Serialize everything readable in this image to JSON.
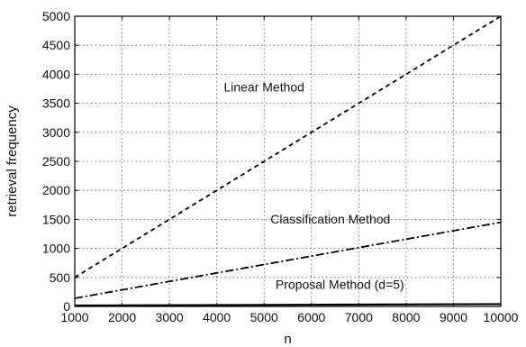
{
  "chart_data": {
    "type": "line",
    "xlabel": "n",
    "ylabel": "retrieval frequency",
    "xlim": [
      1000,
      10000
    ],
    "ylim": [
      0,
      5000
    ],
    "xticks": [
      1000,
      2000,
      3000,
      4000,
      5000,
      6000,
      7000,
      8000,
      9000,
      10000
    ],
    "yticks": [
      0,
      500,
      1000,
      1500,
      2000,
      2500,
      3000,
      3500,
      4000,
      4500,
      5000
    ],
    "grid": true,
    "series": [
      {
        "name": "Linear Method",
        "style": "dashed",
        "color": "#000000",
        "x": [
          1000,
          10000
        ],
        "y": [
          500,
          5000
        ]
      },
      {
        "name": "Classification Method",
        "style": "dashdot",
        "color": "#000000",
        "x": [
          1000,
          10000
        ],
        "y": [
          140,
          1450
        ]
      },
      {
        "name": "Proposal Method (d=5)",
        "style": "solid",
        "color": "#000000",
        "x": [
          1000,
          10000
        ],
        "y": [
          15,
          40
        ]
      }
    ],
    "annotations": [
      {
        "text": "Linear Method",
        "x": 5000,
        "y": 3700
      },
      {
        "text": "Classification Method",
        "x": 6400,
        "y": 1430
      },
      {
        "text": "Proposal Method (d=5)",
        "x": 6600,
        "y": 300
      }
    ]
  }
}
